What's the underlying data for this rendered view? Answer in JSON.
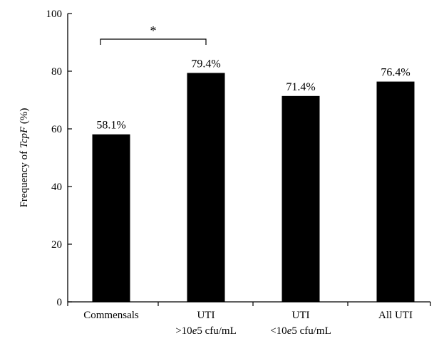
{
  "chart_data": {
    "type": "bar",
    "categories": [
      [
        "Commensals"
      ],
      [
        "UTI",
        ">10e5 cfu/mL"
      ],
      [
        "UTI",
        "<10e5 cfu/mL"
      ],
      [
        "All UTI"
      ]
    ],
    "values": [
      58.1,
      79.4,
      71.4,
      76.4
    ],
    "data_labels": [
      "58.1%",
      "79.4%",
      "71.4%",
      "76.4%"
    ],
    "ylabel": "Frequency of TcpF (%)",
    "ylim": [
      0,
      100
    ],
    "yticks": [
      0,
      20,
      40,
      60,
      80,
      100
    ],
    "ytick_labels": [
      "0",
      "20",
      "40",
      "60",
      "80",
      "100"
    ],
    "grid": false,
    "bar_color": "#000000",
    "significance": {
      "between": [
        0,
        1
      ],
      "label": "*"
    }
  }
}
